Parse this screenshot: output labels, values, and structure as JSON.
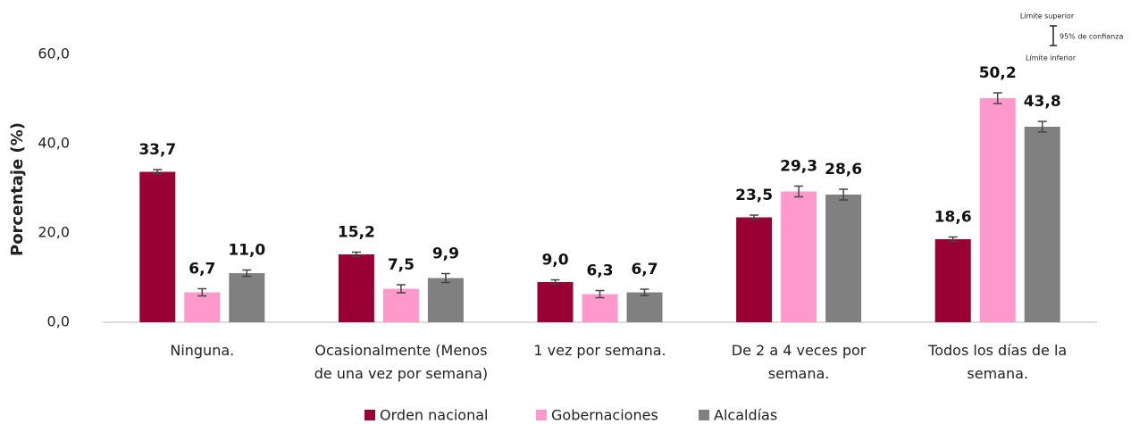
{
  "chart_data": {
    "type": "bar",
    "y_label": "Porcentaje (%)",
    "categories": [
      "Ninguna.",
      "Ocasionalmente (Menos de una vez por semana)",
      "1 vez por semana.",
      "De 2 a 4 veces por semana.",
      "Todos los días de la semana."
    ],
    "series": [
      {
        "name": "Orden nacional",
        "color": "#990033",
        "values": [
          33.7,
          15.2,
          9.0,
          23.5,
          18.6
        ],
        "value_labels": [
          "33,7",
          "15,2",
          "9,0",
          "23,5",
          "18,6"
        ],
        "errors": [
          0.5,
          0.5,
          0.5,
          0.5,
          0.5
        ]
      },
      {
        "name": "Gobernaciones",
        "color": "#ff99cc",
        "values": [
          6.7,
          7.5,
          6.3,
          29.3,
          50.2
        ],
        "value_labels": [
          "6,7",
          "7,5",
          "6,3",
          "29,3",
          "50,2"
        ],
        "errors": [
          0.8,
          0.9,
          0.8,
          1.2,
          1.2
        ]
      },
      {
        "name": "Alcaldías",
        "color": "#808080",
        "values": [
          11.0,
          9.9,
          6.7,
          28.6,
          43.8
        ],
        "value_labels": [
          "11,0",
          "9,9",
          "6,7",
          "28,6",
          "43,8"
        ],
        "errors": [
          0.7,
          1.0,
          0.7,
          1.2,
          1.2
        ]
      }
    ],
    "ylim": [
      0,
      60
    ],
    "yticks": [
      {
        "value": 0,
        "label": "0,0"
      },
      {
        "value": 20,
        "label": "20,0"
      },
      {
        "value": 40,
        "label": "40,0"
      },
      {
        "value": 60,
        "label": "60,0"
      }
    ],
    "grid": false,
    "legend": "bottom",
    "error_note": {
      "upper": "Límite superior",
      "middle": "95% de confianza",
      "lower": "Límite inferior"
    }
  }
}
